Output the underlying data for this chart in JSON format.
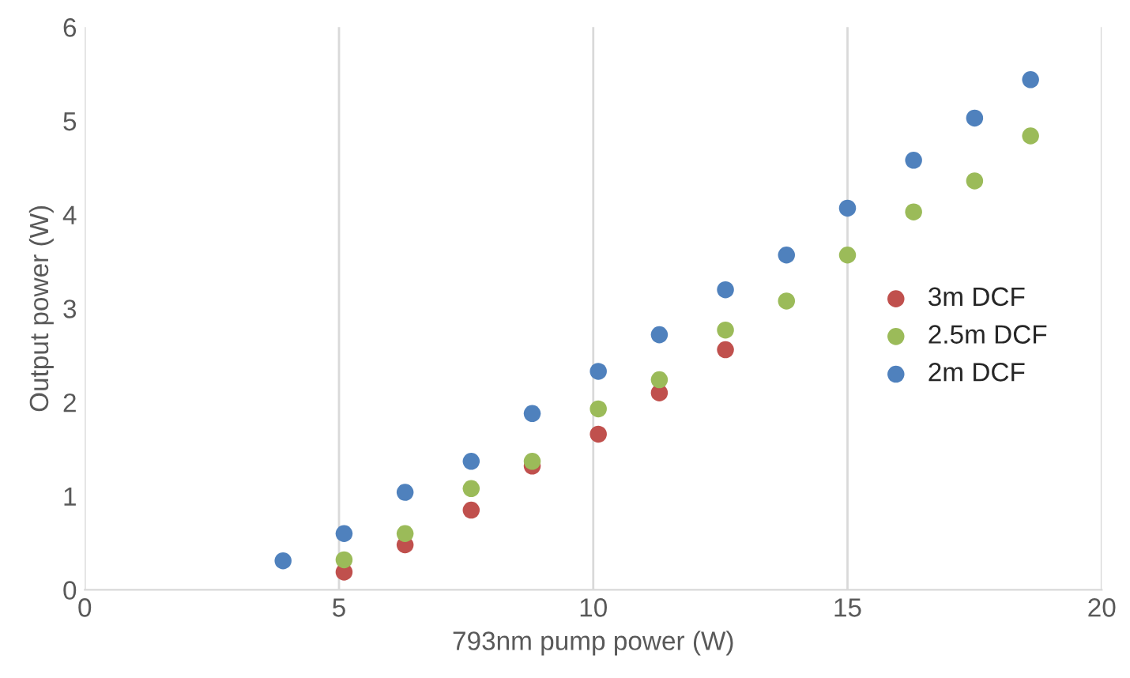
{
  "chart_data": {
    "type": "scatter",
    "xlabel": "793nm pump power (W)",
    "ylabel": "Output power (W)",
    "xlim": [
      0,
      20
    ],
    "xticks": [
      0,
      5,
      10,
      15,
      20
    ],
    "ylim": [
      0,
      6
    ],
    "yticks": [
      0,
      1,
      2,
      3,
      4,
      5,
      6
    ],
    "grid": "x",
    "legend": "right",
    "marker": "circle",
    "series": [
      {
        "name": "3m DCF",
        "color": "#c0504d",
        "x": [
          5.1,
          6.3,
          7.6,
          8.8,
          10.1,
          11.3,
          12.6
        ],
        "values": [
          0.19,
          0.48,
          0.85,
          1.32,
          1.66,
          2.1,
          2.56
        ]
      },
      {
        "name": "2.5m DCF",
        "color": "#9bbb59",
        "x": [
          5.1,
          6.3,
          7.6,
          8.8,
          10.1,
          11.3,
          12.6,
          13.8,
          15.0,
          16.3,
          17.5,
          18.6
        ],
        "values": [
          0.32,
          0.6,
          1.08,
          1.37,
          1.93,
          2.24,
          2.77,
          3.08,
          3.57,
          4.03,
          4.36,
          4.84
        ]
      },
      {
        "name": "2m DCF",
        "color": "#4f81bd",
        "x": [
          3.9,
          5.1,
          6.3,
          7.6,
          8.8,
          10.1,
          11.3,
          12.6,
          13.8,
          15.0,
          16.3,
          17.5,
          18.6
        ],
        "values": [
          0.31,
          0.6,
          1.04,
          1.37,
          1.88,
          2.33,
          2.72,
          3.2,
          3.57,
          4.07,
          4.58,
          5.03,
          5.44
        ]
      }
    ]
  }
}
